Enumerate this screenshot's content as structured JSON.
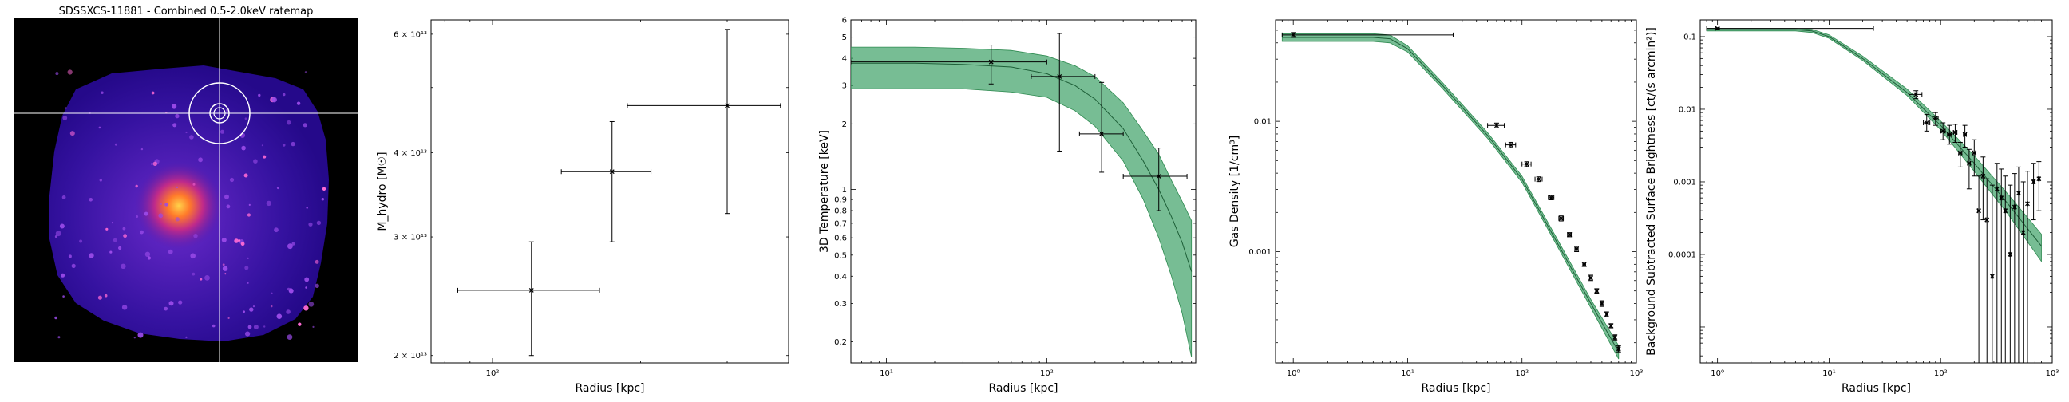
{
  "ratemap": {
    "title": "SDSSXCS-11881 - Combined 0.5-2.0keV ratemap"
  },
  "chart_data": [
    {
      "type": "scatter",
      "xlabel": "Radius [kpc]",
      "ylabel": "M_hydro [M☉]",
      "xscale": "log",
      "yscale": "log",
      "xlim": [
        75,
        400
      ],
      "ylim": [
        19500000000000.0,
        63000000000000.0
      ],
      "xticks": [
        {
          "v": 100,
          "label": "10²"
        }
      ],
      "yticks": [
        {
          "v": 20000000000000.0,
          "label": "2 × 10¹³"
        },
        {
          "v": 30000000000000.0,
          "label": "3 × 10¹³"
        },
        {
          "v": 40000000000000.0,
          "label": "4 × 10¹³"
        },
        {
          "v": 60000000000000.0,
          "label": "6 × 10¹³"
        }
      ],
      "points": [
        {
          "x": 120,
          "y": 25000000000000.0,
          "xlo": 85,
          "xhi": 165,
          "ylo": 20000000000000.0,
          "yhi": 29500000000000.0
        },
        {
          "x": 175,
          "y": 37500000000000.0,
          "xlo": 138,
          "xhi": 210,
          "ylo": 29500000000000.0,
          "yhi": 44500000000000.0
        },
        {
          "x": 300,
          "y": 47000000000000.0,
          "xlo": 188,
          "xhi": 385,
          "ylo": 32500000000000.0,
          "yhi": 61000000000000.0
        }
      ]
    },
    {
      "type": "line",
      "xlabel": "Radius [kpc]",
      "ylabel": "3D Temperature [keV]",
      "xscale": "log",
      "yscale": "log",
      "xlim": [
        6,
        850
      ],
      "ylim": [
        0.16,
        6
      ],
      "xticks": [
        {
          "v": 10,
          "label": "10¹"
        },
        {
          "v": 100,
          "label": "10²"
        }
      ],
      "yticks": [
        {
          "v": 0.2,
          "label": "0.2"
        },
        {
          "v": 0.3,
          "label": "0.3"
        },
        {
          "v": 0.4,
          "label": "0.4"
        },
        {
          "v": 0.5,
          "label": "0.5"
        },
        {
          "v": 0.6,
          "label": "0.6"
        },
        {
          "v": 0.7,
          "label": "0.7"
        },
        {
          "v": 0.8,
          "label": "0.8"
        },
        {
          "v": 0.9,
          "label": "0.9"
        },
        {
          "v": 1,
          "label": "1"
        },
        {
          "v": 2,
          "label": "2"
        },
        {
          "v": 3,
          "label": "3"
        },
        {
          "v": 4,
          "label": "4"
        },
        {
          "v": 5,
          "label": "5"
        },
        {
          "v": 6,
          "label": "6"
        }
      ],
      "model": {
        "x": [
          6,
          15,
          30,
          60,
          100,
          150,
          200,
          300,
          400,
          500,
          600,
          700,
          800
        ],
        "y": [
          3.8,
          3.8,
          3.75,
          3.65,
          3.4,
          3.0,
          2.6,
          1.9,
          1.35,
          1.0,
          0.75,
          0.57,
          0.42
        ],
        "ylo": [
          2.9,
          2.9,
          2.9,
          2.8,
          2.65,
          2.3,
          1.95,
          1.35,
          0.9,
          0.6,
          0.4,
          0.27,
          0.17
        ],
        "yhi": [
          4.5,
          4.5,
          4.45,
          4.35,
          4.1,
          3.7,
          3.3,
          2.5,
          1.85,
          1.45,
          1.1,
          0.88,
          0.72
        ]
      },
      "points": [
        {
          "x": 45,
          "y": 3.85,
          "xlo": 6,
          "xhi": 100,
          "ylo": 3.05,
          "yhi": 4.6
        },
        {
          "x": 120,
          "y": 3.3,
          "xlo": 80,
          "xhi": 200,
          "ylo": 1.5,
          "yhi": 5.2
        },
        {
          "x": 220,
          "y": 1.8,
          "xlo": 160,
          "xhi": 300,
          "ylo": 1.2,
          "yhi": 3.1
        },
        {
          "x": 500,
          "y": 1.15,
          "xlo": 300,
          "xhi": 750,
          "ylo": 0.8,
          "yhi": 1.55
        }
      ]
    },
    {
      "type": "line",
      "xlabel": "Radius [kpc]",
      "ylabel": "Gas Density [1/cm³]",
      "xscale": "log",
      "yscale": "log",
      "xlim": [
        0.7,
        1000
      ],
      "ylim": [
        0.00014,
        0.06
      ],
      "xticks": [
        {
          "v": 1,
          "label": "10⁰"
        },
        {
          "v": 10,
          "label": "10¹"
        },
        {
          "v": 100,
          "label": "10²"
        },
        {
          "v": 1000,
          "label": "10³"
        }
      ],
      "yticks": [
        {
          "v": 0.001,
          "label": "0.001"
        },
        {
          "v": 0.01,
          "label": "0.01"
        }
      ],
      "model": {
        "x": [
          0.8,
          2,
          5,
          7,
          10,
          20,
          50,
          100,
          200,
          400,
          700
        ],
        "y": [
          0.044,
          0.044,
          0.044,
          0.043,
          0.036,
          0.019,
          0.0078,
          0.0036,
          0.0012,
          0.0004,
          0.00017
        ],
        "ylo": [
          0.041,
          0.041,
          0.041,
          0.04,
          0.034,
          0.018,
          0.0074,
          0.0034,
          0.00113,
          0.00037,
          0.00015
        ],
        "yhi": [
          0.047,
          0.047,
          0.047,
          0.046,
          0.038,
          0.02,
          0.0082,
          0.0038,
          0.00128,
          0.00043,
          0.00019
        ]
      },
      "points": [
        {
          "x": 1,
          "y": 0.046,
          "xlo": 0.8,
          "xhi": 25,
          "ylo": 0.044,
          "yhi": 0.048
        },
        {
          "x": 60,
          "y": 0.0093,
          "xlo": 50,
          "xhi": 70,
          "ylo": 0.0089,
          "yhi": 0.0097
        },
        {
          "x": 80,
          "y": 0.0066,
          "xlo": 72,
          "xhi": 88,
          "ylo": 0.0063,
          "yhi": 0.0069
        },
        {
          "x": 110,
          "y": 0.0047,
          "xlo": 100,
          "xhi": 120,
          "ylo": 0.0045,
          "yhi": 0.0049
        },
        {
          "x": 140,
          "y": 0.0036,
          "xlo": 130,
          "xhi": 150,
          "ylo": 0.00345,
          "yhi": 0.00375
        },
        {
          "x": 180,
          "y": 0.0026,
          "xlo": 170,
          "xhi": 190,
          "ylo": 0.0025,
          "yhi": 0.0027
        },
        {
          "x": 220,
          "y": 0.0018,
          "xlo": 210,
          "xhi": 230,
          "ylo": 0.00172,
          "yhi": 0.00188
        },
        {
          "x": 260,
          "y": 0.00135,
          "xlo": 250,
          "xhi": 270,
          "ylo": 0.0013,
          "yhi": 0.0014
        },
        {
          "x": 300,
          "y": 0.00105,
          "xlo": 290,
          "xhi": 310,
          "ylo": 0.001,
          "yhi": 0.0011
        },
        {
          "x": 350,
          "y": 0.0008,
          "xlo": 340,
          "xhi": 360,
          "ylo": 0.00077,
          "yhi": 0.00083
        },
        {
          "x": 400,
          "y": 0.00063,
          "xlo": 390,
          "xhi": 410,
          "ylo": 0.0006,
          "yhi": 0.00066
        },
        {
          "x": 450,
          "y": 0.0005,
          "xlo": 440,
          "xhi": 460,
          "ylo": 0.00048,
          "yhi": 0.00052
        },
        {
          "x": 500,
          "y": 0.0004,
          "xlo": 490,
          "xhi": 510,
          "ylo": 0.00038,
          "yhi": 0.00042
        },
        {
          "x": 550,
          "y": 0.00033,
          "xlo": 540,
          "xhi": 560,
          "ylo": 0.000315,
          "yhi": 0.000345
        },
        {
          "x": 600,
          "y": 0.00027,
          "xlo": 590,
          "xhi": 610,
          "ylo": 0.00026,
          "yhi": 0.00028
        },
        {
          "x": 650,
          "y": 0.00022,
          "xlo": 640,
          "xhi": 660,
          "ylo": 0.00021,
          "yhi": 0.00023
        },
        {
          "x": 700,
          "y": 0.00018,
          "xlo": 690,
          "xhi": 710,
          "ylo": 0.00017,
          "yhi": 0.00019
        }
      ]
    },
    {
      "type": "line",
      "xlabel": "Radius [kpc]",
      "ylabel": "Background Subtracted Surface Brightness [ct/(s arcmin²)]",
      "xscale": "log",
      "yscale": "log",
      "xlim": [
        0.7,
        1000
      ],
      "ylim": [
        3.2e-06,
        0.17
      ],
      "xticks": [
        {
          "v": 1,
          "label": "10⁰"
        },
        {
          "v": 10,
          "label": "10¹"
        },
        {
          "v": 100,
          "label": "10²"
        },
        {
          "v": 1000,
          "label": "10³"
        }
      ],
      "yticks": [
        {
          "v": 0.0001,
          "label": "0.0001"
        },
        {
          "v": 0.001,
          "label": "0.001"
        },
        {
          "v": 0.01,
          "label": "0.01"
        },
        {
          "v": 0.1,
          "label": "0.1"
        }
      ],
      "model": {
        "x": [
          0.8,
          2,
          5,
          7,
          10,
          20,
          50,
          100,
          200,
          400,
          800
        ],
        "y": [
          0.125,
          0.125,
          0.125,
          0.12,
          0.1,
          0.05,
          0.017,
          0.006,
          0.0018,
          0.0005,
          0.00013
        ],
        "ylo": [
          0.12,
          0.12,
          0.12,
          0.114,
          0.095,
          0.047,
          0.0155,
          0.0052,
          0.0014,
          0.00036,
          8e-05
        ],
        "yhi": [
          0.13,
          0.13,
          0.13,
          0.126,
          0.106,
          0.054,
          0.019,
          0.0069,
          0.0023,
          0.00068,
          0.00019
        ]
      },
      "points": [
        {
          "x": 1,
          "y": 0.13,
          "xlo": 0.8,
          "xhi": 25,
          "ylo": 0.127,
          "yhi": 0.133
        },
        {
          "x": 60,
          "y": 0.016,
          "xlo": 52,
          "xhi": 68,
          "ylo": 0.014,
          "yhi": 0.018
        },
        {
          "x": 75,
          "y": 0.0065,
          "xlo": 70,
          "xhi": 80,
          "ylo": 0.005,
          "yhi": 0.0085
        },
        {
          "x": 90,
          "y": 0.0075,
          "xlo": 85,
          "xhi": 95,
          "ylo": 0.006,
          "yhi": 0.009
        },
        {
          "x": 105,
          "y": 0.005,
          "xlo": 100,
          "xhi": 110,
          "ylo": 0.0038,
          "yhi": 0.0065
        },
        {
          "x": 120,
          "y": 0.0045,
          "xlo": 115,
          "xhi": 125,
          "ylo": 0.0033,
          "yhi": 0.006
        },
        {
          "x": 135,
          "y": 0.0048,
          "xlo": 130,
          "xhi": 140,
          "ylo": 0.0035,
          "yhi": 0.0062
        },
        {
          "x": 150,
          "y": 0.0025,
          "xlo": 145,
          "xhi": 155,
          "ylo": 0.0016,
          "yhi": 0.0035
        },
        {
          "x": 165,
          "y": 0.0045,
          "xlo": 160,
          "xhi": 170,
          "ylo": 0.003,
          "yhi": 0.006
        },
        {
          "x": 180,
          "y": 0.0018,
          "xlo": 175,
          "xhi": 185,
          "ylo": 0.0008,
          "yhi": 0.0028
        },
        {
          "x": 200,
          "y": 0.0025,
          "xlo": 195,
          "xhi": 205,
          "ylo": 0.0012,
          "yhi": 0.0038
        },
        {
          "x": 220,
          "y": 0.0004,
          "xlo": 215,
          "xhi": 225,
          "ylo": 3.2e-06,
          "yhi": 0.0012
        },
        {
          "x": 240,
          "y": 0.0012,
          "xlo": 235,
          "xhi": 245,
          "ylo": 0.0003,
          "yhi": 0.0022
        },
        {
          "x": 260,
          "y": 0.0003,
          "xlo": 255,
          "xhi": 265,
          "ylo": 3.2e-06,
          "yhi": 0.0011
        },
        {
          "x": 290,
          "y": 5e-05,
          "xlo": 285,
          "xhi": 295,
          "ylo": 3.2e-06,
          "yhi": 0.0009
        },
        {
          "x": 320,
          "y": 0.0008,
          "xlo": 315,
          "xhi": 325,
          "ylo": 3.2e-06,
          "yhi": 0.0018
        },
        {
          "x": 350,
          "y": 0.0006,
          "xlo": 345,
          "xhi": 355,
          "ylo": 3.2e-06,
          "yhi": 0.0015
        },
        {
          "x": 380,
          "y": 0.0004,
          "xlo": 375,
          "xhi": 385,
          "ylo": 3.2e-06,
          "yhi": 0.0012
        },
        {
          "x": 420,
          "y": 0.0001,
          "xlo": 415,
          "xhi": 425,
          "ylo": 3.2e-06,
          "yhi": 0.0009
        },
        {
          "x": 460,
          "y": 0.00045,
          "xlo": 455,
          "xhi": 465,
          "ylo": 3.2e-06,
          "yhi": 0.0013
        },
        {
          "x": 500,
          "y": 0.0007,
          "xlo": 495,
          "xhi": 505,
          "ylo": 3.2e-06,
          "yhi": 0.0016
        },
        {
          "x": 550,
          "y": 0.0002,
          "xlo": 545,
          "xhi": 555,
          "ylo": 3.2e-06,
          "yhi": 0.001
        },
        {
          "x": 600,
          "y": 0.0005,
          "xlo": 595,
          "xhi": 605,
          "ylo": 3.2e-06,
          "yhi": 0.0014
        },
        {
          "x": 680,
          "y": 0.001,
          "xlo": 670,
          "xhi": 690,
          "ylo": 0.0003,
          "yhi": 0.0018
        },
        {
          "x": 760,
          "y": 0.0011,
          "xlo": 750,
          "xhi": 770,
          "ylo": 0.0004,
          "yhi": 0.0019
        }
      ]
    }
  ]
}
